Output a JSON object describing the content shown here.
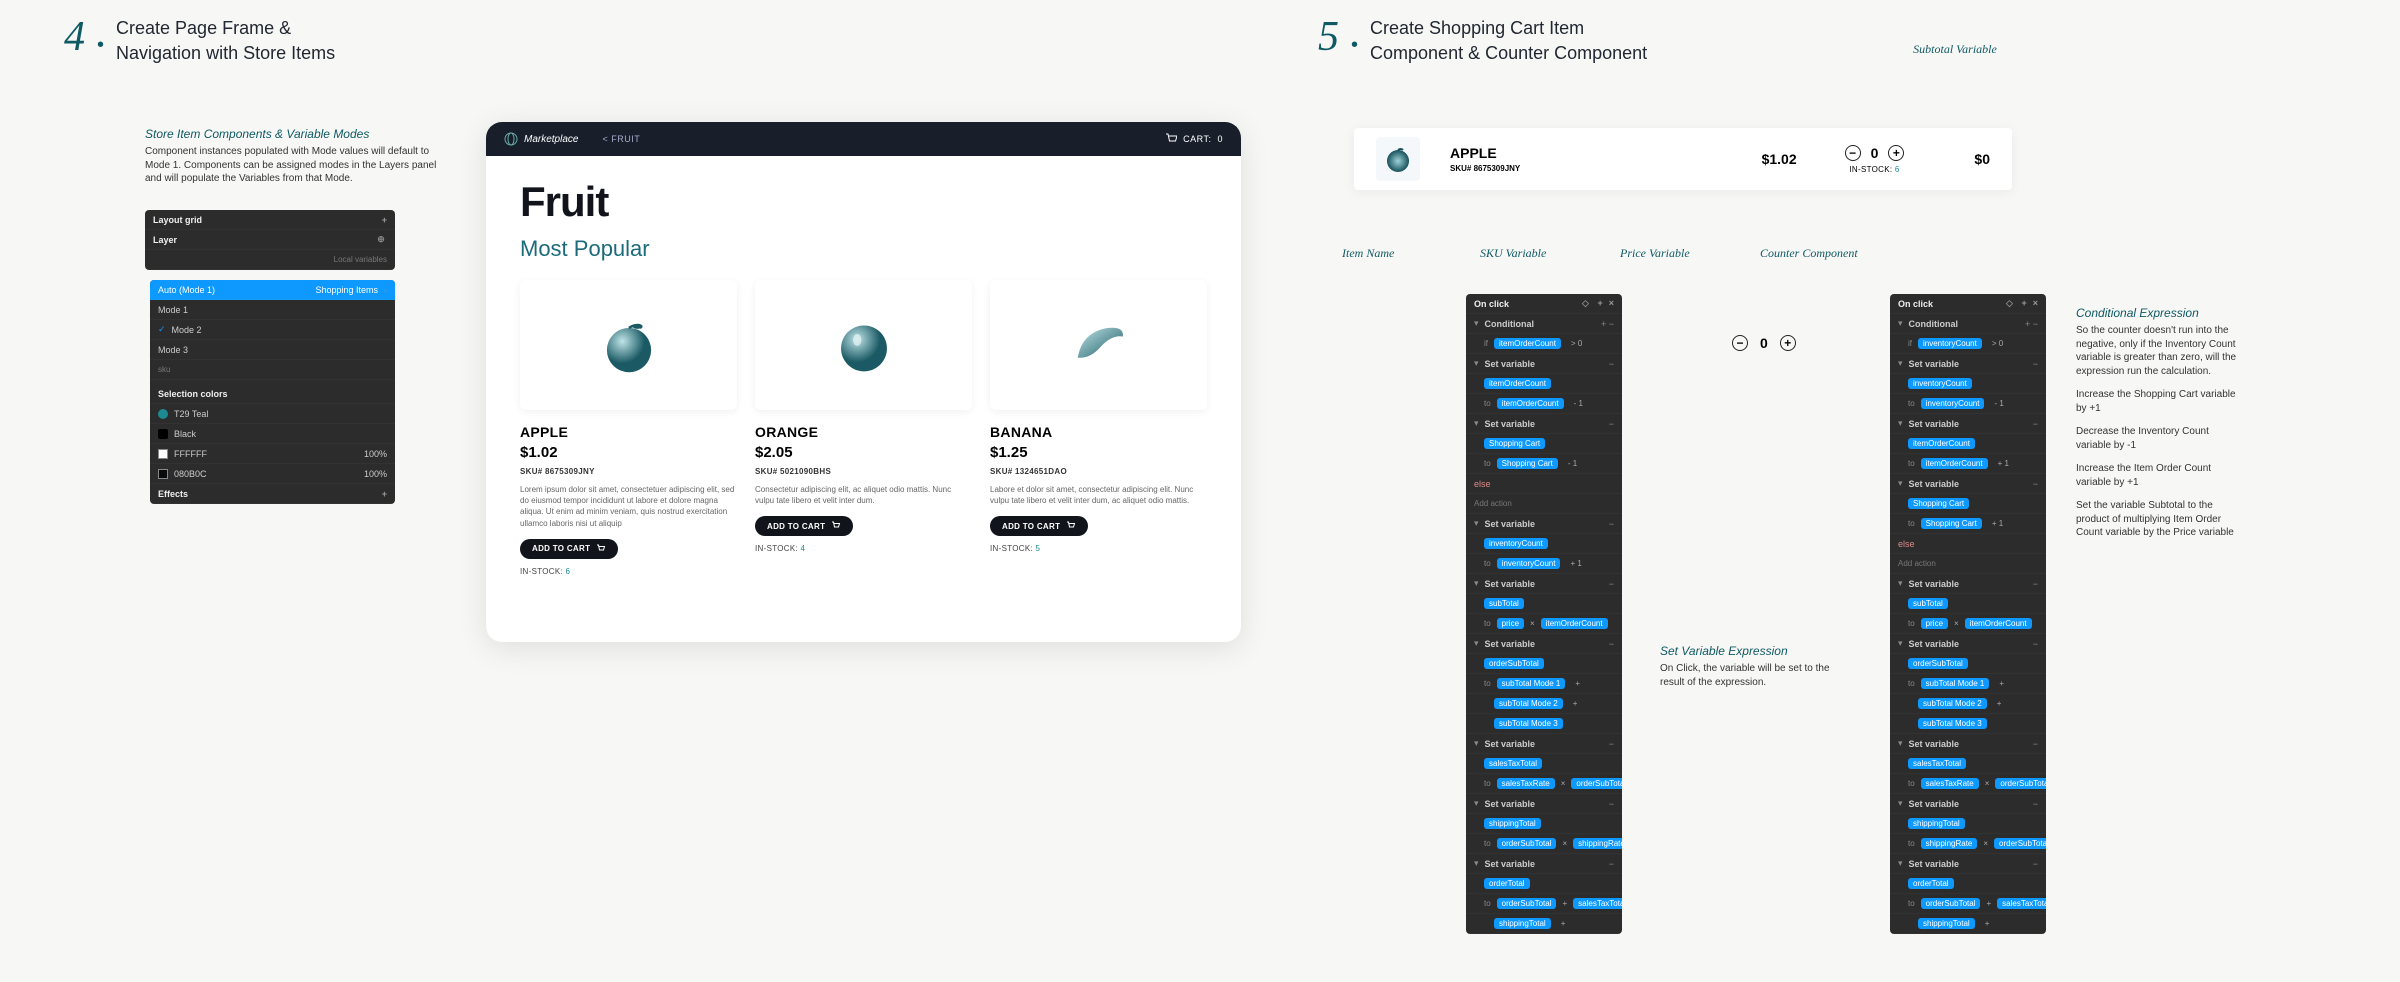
{
  "colors": {
    "accent": "#0f5a64",
    "nav": "#181f2b",
    "teal": "#1b8a92",
    "blue": "#0d99ff",
    "panel": "#2c2c2c"
  },
  "step4": {
    "num": "4",
    "title1": "Create Page Frame &",
    "title2": "Navigation with Store Items"
  },
  "step5": {
    "num": "5",
    "title1": "Create Shopping Cart Item",
    "title2": "Component & Counter Component"
  },
  "annot4": {
    "title": "Store Item Components & Variable Modes",
    "body": "Component instances populated with Mode values will default to Mode 1. Components can be assigned modes in the Layers panel and will populate the Variables from that Mode."
  },
  "layers": {
    "header": "Layout grid",
    "section": "Layer",
    "localvars": "Local variables",
    "auto": "Auto (Mode 1)",
    "shopping": "Shopping Items",
    "modes": [
      "Mode 1",
      "Mode 2",
      "Mode 3"
    ],
    "sku": "sku",
    "selcolors": "Selection colors",
    "swatches": [
      {
        "label": "T29 Teal",
        "pct": ""
      },
      {
        "label": "Black",
        "pct": ""
      },
      {
        "label": "FFFFFF",
        "pct": "100%"
      },
      {
        "label": "080B0C",
        "pct": "100%"
      }
    ],
    "effects": "Effects"
  },
  "market": {
    "brand": "Marketplace",
    "crumb": "<  FRUIT",
    "cartlabel": "CART:",
    "cartcount": "0",
    "h1": "Fruit",
    "h2": "Most Popular",
    "items": [
      {
        "name": "APPLE",
        "price": "$1.02",
        "sku": "SKU# 8675309JNY",
        "desc": "Lorem ipsum dolor sit amet, consectetuer adipiscing elit, sed do eiusmod tempor incididunt ut labore et dolore magna aliqua. Ut enim ad minim veniam, quis nostrud exercitation ullamco laboris nisi ut aliquip",
        "btn": "ADD TO CART",
        "stocklabel": "IN-STOCK:",
        "stock": "6"
      },
      {
        "name": "ORANGE",
        "price": "$2.05",
        "sku": "SKU# 5021090BHS",
        "desc": "Consectetur adipiscing elit, ac aliquet odio mattis. Nunc vulpu tate libero et velit inter dum.",
        "btn": "ADD TO CART",
        "stocklabel": "IN-STOCK:",
        "stock": "4"
      },
      {
        "name": "BANANA",
        "price": "$1.25",
        "sku": "SKU# 1324651DAO",
        "desc": "Labore et dolor sit amet, consectetur adipiscing elit. Nunc vulpu tate libero et velit inter dum, ac aliquet odio mattis.",
        "btn": "ADD TO CART",
        "stocklabel": "IN-STOCK:",
        "stock": "5"
      }
    ]
  },
  "cart": {
    "name": "APPLE",
    "sku": "SKU# 8675309JNY",
    "price": "$1.02",
    "count": "0",
    "stocklabel": "IN-STOCK:",
    "stock": "6",
    "subtotal": "$0"
  },
  "labels5": {
    "subtotal": "Subtotal Variable",
    "itemname": "Item Name",
    "skuvar": "SKU Variable",
    "pricevar": "Price Variable",
    "countercomp": "Counter Component"
  },
  "miniCounter": {
    "val": "0"
  },
  "setvar": {
    "title": "Set Variable Expression",
    "body": "On Click, the variable will be set to the result of the expression."
  },
  "cond": {
    "title": "Conditional Expression",
    "body": "So the counter doesn't run into the negative, only if the Inventory Count variable is greater than zero, will the expression run the calculation.",
    "l1": "Increase the Shopping Cart variable by +1",
    "l2": "Decrease the Inventory Count variable by -1",
    "l3": "Increase the Item Order Count variable by +1",
    "l4": "Set the variable Subtotal to the product of multiplying Item Order Count variable by the Price variable"
  },
  "onclickPanel": {
    "header": "On click",
    "rows": [
      {
        "t": "caret",
        "label": "Conditional",
        "ex": "+ −"
      },
      {
        "t": "indent",
        "label": "if",
        "tag": "itemOrderCount",
        "op": "> 0"
      },
      {
        "t": "caret",
        "label": "Set variable",
        "ex": "−"
      },
      {
        "t": "indent",
        "tag": "itemOrderCount"
      },
      {
        "t": "indent",
        "label": "to",
        "tag": "itemOrderCount",
        "op": "- 1"
      },
      {
        "t": "caret",
        "label": "Set variable",
        "ex": "−"
      },
      {
        "t": "indent",
        "tag": "Shopping Cart"
      },
      {
        "t": "indent",
        "label": "to",
        "tag": "Shopping Cart",
        "op": "- 1"
      },
      {
        "t": "else",
        "label": "else"
      },
      {
        "t": "addaction",
        "label": "Add action"
      },
      {
        "t": "caret",
        "label": "Set variable",
        "ex": "−"
      },
      {
        "t": "indent",
        "tag": "inventoryCount"
      },
      {
        "t": "indent",
        "label": "to",
        "tag": "inventoryCount",
        "op": "+ 1"
      },
      {
        "t": "caret",
        "label": "Set variable",
        "ex": "−"
      },
      {
        "t": "indent",
        "tag": "subTotal"
      },
      {
        "t": "indent",
        "label": "to",
        "src": "price",
        "op": "×",
        "tag": "itemOrderCount"
      },
      {
        "t": "caret",
        "label": "Set variable",
        "ex": "−"
      },
      {
        "t": "indent",
        "tag": "orderSubTotal"
      },
      {
        "t": "indent",
        "label": "to",
        "tag": "subTotal Mode 1",
        "op": "+"
      },
      {
        "t": "indent2",
        "tag": "subTotal Mode 2",
        "op": "+"
      },
      {
        "t": "indent2",
        "tag": "subTotal Mode 3"
      },
      {
        "t": "caret",
        "label": "Set variable",
        "ex": "−"
      },
      {
        "t": "indent",
        "tag": "salesTaxTotal"
      },
      {
        "t": "indent",
        "label": "to",
        "src": "salesTaxRate",
        "op": "×",
        "tag": "orderSubTotal"
      },
      {
        "t": "caret",
        "label": "Set variable",
        "ex": "−"
      },
      {
        "t": "indent",
        "tag": "shippingTotal"
      },
      {
        "t": "indent",
        "label": "to",
        "src": "orderSubTotal",
        "op": "×",
        "tag": "shippingRate"
      },
      {
        "t": "caret",
        "label": "Set variable",
        "ex": "−"
      },
      {
        "t": "indent",
        "tag": "orderTotal"
      },
      {
        "t": "indent",
        "label": "to",
        "src": "orderSubTotal",
        "op": "+",
        "tag": "salesTaxTotal"
      },
      {
        "t": "indent2",
        "op": "+",
        "tag": "shippingTotal"
      }
    ]
  },
  "onclickPanel2": {
    "header": "On click",
    "rows": [
      {
        "t": "caret",
        "label": "Conditional",
        "ex": "+ −"
      },
      {
        "t": "indent",
        "label": "if",
        "tag": "inventoryCount",
        "op": "> 0"
      },
      {
        "t": "caret",
        "label": "Set variable",
        "ex": "−"
      },
      {
        "t": "indent",
        "tag": "inventoryCount"
      },
      {
        "t": "indent",
        "label": "to",
        "tag": "inventoryCount",
        "op": "- 1"
      },
      {
        "t": "caret",
        "label": "Set variable",
        "ex": "−"
      },
      {
        "t": "indent",
        "tag": "itemOrderCount"
      },
      {
        "t": "indent",
        "label": "to",
        "tag": "itemOrderCount",
        "op": "+ 1"
      },
      {
        "t": "caret",
        "label": "Set variable",
        "ex": "−"
      },
      {
        "t": "indent",
        "tag": "Shopping Cart"
      },
      {
        "t": "indent",
        "label": "to",
        "tag": "Shopping Cart",
        "op": "+ 1"
      },
      {
        "t": "else",
        "label": "else"
      },
      {
        "t": "addaction",
        "label": "Add action"
      },
      {
        "t": "caret",
        "label": "Set variable",
        "ex": "−"
      },
      {
        "t": "indent",
        "tag": "subTotal"
      },
      {
        "t": "indent",
        "label": "to",
        "src": "price",
        "op": "×",
        "tag": "itemOrderCount"
      },
      {
        "t": "caret",
        "label": "Set variable",
        "ex": "−"
      },
      {
        "t": "indent",
        "tag": "orderSubTotal"
      },
      {
        "t": "indent",
        "label": "to",
        "tag": "subTotal Mode 1",
        "op": "+"
      },
      {
        "t": "indent2",
        "tag": "subTotal Mode 2",
        "op": "+"
      },
      {
        "t": "indent2",
        "tag": "subTotal Mode 3"
      },
      {
        "t": "caret",
        "label": "Set variable",
        "ex": "−"
      },
      {
        "t": "indent",
        "tag": "salesTaxTotal"
      },
      {
        "t": "indent",
        "label": "to",
        "src": "salesTaxRate",
        "op": "×",
        "tag": "orderSubTotal"
      },
      {
        "t": "caret",
        "label": "Set variable",
        "ex": "−"
      },
      {
        "t": "indent",
        "tag": "shippingTotal"
      },
      {
        "t": "indent",
        "label": "to",
        "src": "shippingRate",
        "op": "×",
        "tag": "orderSubTotal"
      },
      {
        "t": "caret",
        "label": "Set variable",
        "ex": "−"
      },
      {
        "t": "indent",
        "tag": "orderTotal"
      },
      {
        "t": "indent",
        "label": "to",
        "src": "orderSubTotal",
        "op": "+",
        "tag": "salesTaxTotal"
      },
      {
        "t": "indent2",
        "op": "+",
        "tag": "shippingTotal"
      }
    ]
  }
}
